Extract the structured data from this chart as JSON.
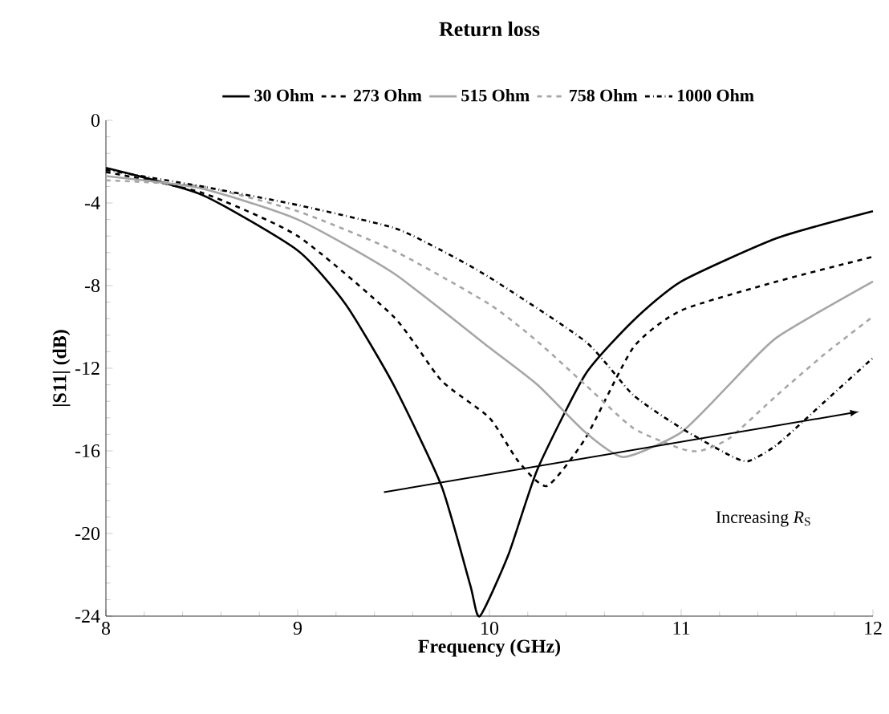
{
  "chart_data": {
    "type": "line",
    "title": "Return loss",
    "xlabel": "Frequency (GHz)",
    "ylabel": "|S11| (dB)",
    "xlim": [
      8,
      12
    ],
    "xticks": [
      8,
      9,
      10,
      11,
      12
    ],
    "ylim": [
      -24,
      0
    ],
    "yticks": [
      0,
      -4,
      -8,
      -12,
      -16,
      -20,
      -24
    ],
    "grid": false,
    "legend": "top",
    "marker": "none",
    "annotations": [
      "Increasing *R*$_{S}$"
    ],
    "series": [
      {
        "name": "30 Ohm",
        "color": "#000000",
        "line_style": "solid",
        "x": [
          8,
          8.5,
          9,
          9.25,
          9.5,
          9.75,
          9.9,
          9.95,
          10.1,
          10.25,
          10.5,
          10.75,
          11,
          11.5,
          12
        ],
        "values": [
          -2.3,
          -3.6,
          -6.3,
          -8.9,
          -12.8,
          -17.7,
          -22.5,
          -24,
          -21,
          -16.9,
          -12.3,
          -9.7,
          -7.8,
          -5.7,
          -4.4
        ]
      },
      {
        "name": "273 Ohm",
        "color": "#000000",
        "line_style": "dashed",
        "x": [
          8,
          8.5,
          9,
          9.5,
          9.75,
          10,
          10.15,
          10.3,
          10.5,
          10.75,
          11,
          11.5,
          12
        ],
        "values": [
          -2.5,
          -3.5,
          -5.6,
          -9.5,
          -12.6,
          -14.4,
          -16.5,
          -17.7,
          -15.4,
          -11,
          -9.2,
          -7.8,
          -6.6
        ]
      },
      {
        "name": "515 Ohm",
        "color": "#a6a6a6",
        "line_style": "solid",
        "x": [
          8,
          8.5,
          9,
          9.5,
          10,
          10.25,
          10.5,
          10.7,
          11,
          11.25,
          11.5,
          12
        ],
        "values": [
          -2.7,
          -3.3,
          -4.8,
          -7.4,
          -11,
          -12.8,
          -15.1,
          -16.3,
          -15.1,
          -12.8,
          -10.5,
          -7.8
        ]
      },
      {
        "name": "758 Ohm",
        "color": "#a6a6a6",
        "line_style": "dashed",
        "x": [
          8,
          8.5,
          9,
          9.5,
          10,
          10.25,
          10.5,
          10.75,
          11,
          11.1,
          11.25,
          11.5,
          11.75,
          12
        ],
        "values": [
          -2.9,
          -3.2,
          -4.4,
          -6.3,
          -8.9,
          -10.7,
          -12.8,
          -14.9,
          -15.9,
          -16,
          -15.4,
          -13.3,
          -11.3,
          -9.5
        ]
      },
      {
        "name": "1000 Ohm",
        "color": "#000000",
        "line_style": "dashdot",
        "x": [
          8,
          8.5,
          9,
          9.5,
          9.75,
          10,
          10.5,
          10.75,
          11,
          11.25,
          11.35,
          11.5,
          11.75,
          12
        ],
        "values": [
          -2.4,
          -3.2,
          -4.1,
          -5.2,
          -6.3,
          -7.6,
          -10.7,
          -13.3,
          -14.9,
          -16.2,
          -16.5,
          -15.7,
          -13.6,
          -11.5
        ]
      }
    ]
  }
}
